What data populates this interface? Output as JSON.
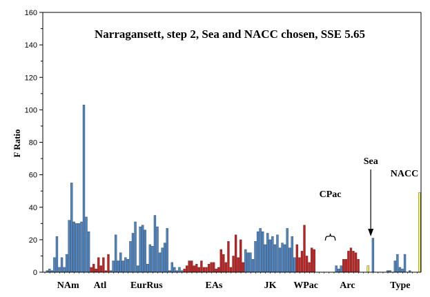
{
  "chart_data": {
    "type": "bar",
    "title": "Narragansett, step 2, Sea and NACC chosen, SSE 5.65",
    "ylabel": "F Ratio",
    "xlabel": "",
    "ylim": [
      0,
      160
    ],
    "yticks": [
      0,
      20,
      40,
      60,
      80,
      100,
      120,
      140,
      160
    ],
    "grid": false,
    "colors": {
      "blue": "#4a86c8",
      "red": "#c81e1e",
      "yellow": "#f2ef5a",
      "stroke": "#333333"
    },
    "groups": [
      {
        "label": "NAm",
        "color": "blue",
        "values": [
          1,
          2,
          1,
          9,
          22,
          3,
          9,
          3,
          11,
          32,
          55,
          31,
          30,
          30,
          31,
          103,
          34,
          25
        ]
      },
      {
        "label": "Atl",
        "color": "red",
        "values": [
          3,
          5,
          2,
          9,
          4,
          9,
          1,
          11
        ]
      },
      {
        "label": "EurRus",
        "color": "blue",
        "values": [
          1,
          7,
          23,
          7,
          12,
          7,
          9,
          8,
          19,
          24,
          31,
          4,
          28,
          29,
          26,
          5,
          17,
          16,
          35,
          28,
          12,
          15,
          18,
          27,
          1,
          6,
          3,
          1,
          3,
          1
        ]
      },
      {
        "label": "EAs",
        "color": "red",
        "values": [
          2,
          4,
          7,
          7,
          4,
          5,
          3,
          7,
          3,
          3,
          5,
          6,
          6,
          2,
          3,
          14,
          11,
          6,
          19,
          3,
          10,
          23,
          9,
          20,
          6
        ]
      },
      {
        "label": "JK",
        "color": "blue",
        "values": [
          14,
          12,
          12,
          8,
          19,
          25,
          27,
          25,
          17,
          24,
          20,
          22,
          17,
          23,
          15,
          18,
          17,
          27,
          15,
          22,
          9
        ]
      },
      {
        "label": "WPac",
        "color": "red",
        "values": [
          17,
          9,
          13,
          29,
          10,
          6,
          15,
          14
        ]
      },
      {
        "label": "CPac",
        "color": "red",
        "values": [
          0,
          0,
          0,
          0
        ]
      },
      {
        "label": "Arc",
        "color": "blue",
        "values": [
          4,
          2,
          4
        ]
      },
      {
        "label": "Arc",
        "color": "red",
        "values": [
          8,
          8,
          13,
          15,
          13,
          12,
          8
        ]
      },
      {
        "label": "Sea",
        "color": "yellow",
        "values": [
          4
        ]
      },
      {
        "label": "Sea",
        "color": "blue",
        "values": [
          21
        ]
      },
      {
        "label": "Type",
        "color": "blue",
        "values": [
          0,
          1,
          1,
          0,
          7,
          11,
          3,
          2,
          11,
          0,
          1,
          0,
          0
        ]
      },
      {
        "label": "NACC",
        "color": "yellow",
        "values": [
          49
        ]
      }
    ],
    "xticks": [
      {
        "label": "NAm"
      },
      {
        "label": "Atl"
      },
      {
        "label": "EurRus"
      },
      {
        "label": "EAs"
      },
      {
        "label": "JK"
      },
      {
        "label": "WPac"
      },
      {
        "label": "Arc"
      },
      {
        "label": "Type"
      }
    ],
    "annotations": [
      {
        "text": "CPac",
        "points_to": "CPac",
        "marker": "brace"
      },
      {
        "text": "Sea",
        "points_to": "Sea",
        "marker": "arrow"
      },
      {
        "text": "NACC",
        "points_to": "NACC",
        "marker": "none"
      }
    ]
  }
}
